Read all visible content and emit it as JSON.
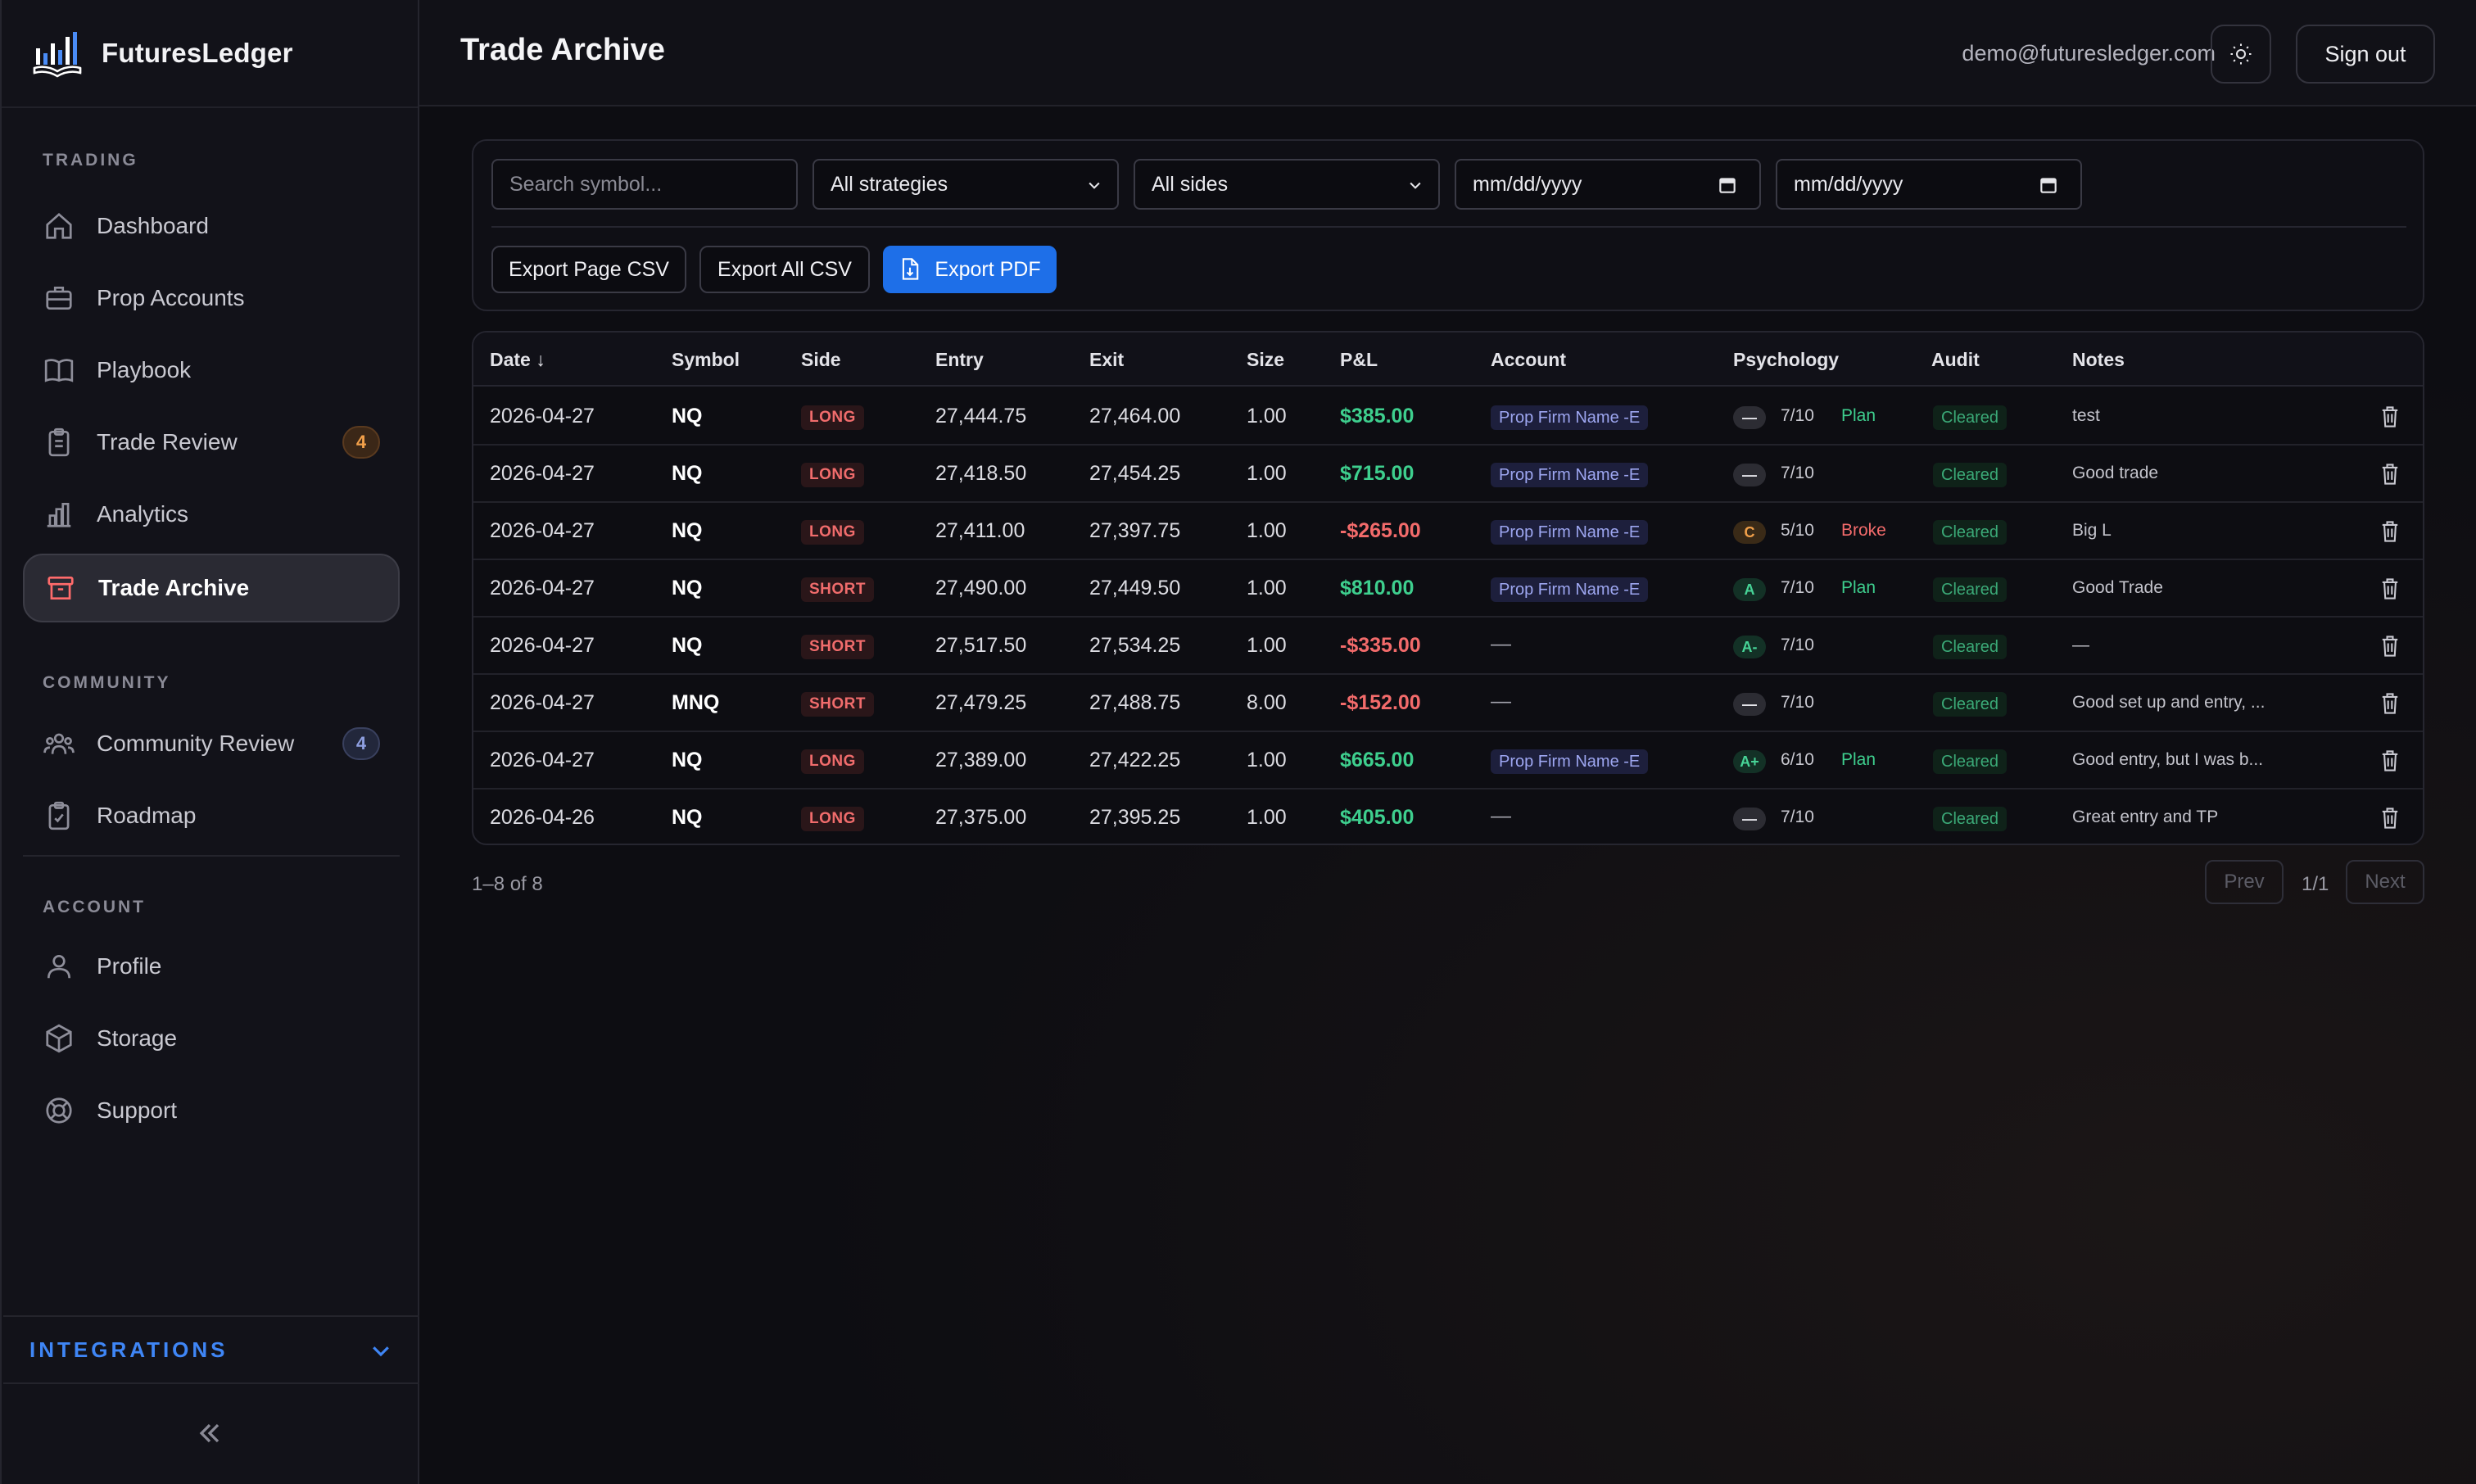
{
  "brand": {
    "name": "FuturesLedger"
  },
  "sidebar": {
    "sections": {
      "trading": "TRADING",
      "community": "COMMUNITY",
      "account": "ACCOUNT"
    },
    "items": [
      {
        "label": "Dashboard",
        "icon": "home-icon"
      },
      {
        "label": "Prop Accounts",
        "icon": "briefcase-icon"
      },
      {
        "label": "Playbook",
        "icon": "book-icon"
      },
      {
        "label": "Trade Review",
        "icon": "clipboard-icon",
        "badge": "4"
      },
      {
        "label": "Analytics",
        "icon": "bar-chart-icon"
      },
      {
        "label": "Trade Archive",
        "icon": "archive-icon",
        "active": true
      },
      {
        "label": "Community Review",
        "icon": "users-icon",
        "badge": "4"
      },
      {
        "label": "Roadmap",
        "icon": "clipboard-check-icon"
      },
      {
        "label": "Profile",
        "icon": "user-icon"
      },
      {
        "label": "Storage",
        "icon": "box-icon"
      },
      {
        "label": "Support",
        "icon": "lifebuoy-icon"
      }
    ],
    "integrations": "INTEGRATIONS"
  },
  "header": {
    "title": "Trade Archive",
    "email": "demo@futuresledger.com",
    "signout": "Sign out"
  },
  "filters": {
    "search_placeholder": "Search symbol...",
    "strategy": "All strategies",
    "side": "All sides",
    "date_from": "mm/dd/yyyy",
    "date_to": "mm/dd/yyyy",
    "export_page": "Export Page CSV",
    "export_all": "Export All CSV",
    "export_pdf": "Export PDF"
  },
  "table": {
    "headers": [
      "Date",
      "Symbol",
      "Side",
      "Entry",
      "Exit",
      "Size",
      "P&L",
      "Account",
      "Psychology",
      "Audit",
      "Notes"
    ],
    "sort_indicator": "↓",
    "rows": [
      {
        "date": "2026-04-27",
        "symbol": "NQ",
        "side": "LONG",
        "entry": "27,444.75",
        "exit": "27,464.00",
        "size": "1.00",
        "pnl": "$385.00",
        "pnl_sign": "pos",
        "account": "Prop Firm Name -E",
        "grade": "—",
        "score": "7/10",
        "tag": "Plan",
        "audit": "Cleared",
        "notes": "test"
      },
      {
        "date": "2026-04-27",
        "symbol": "NQ",
        "side": "LONG",
        "entry": "27,418.50",
        "exit": "27,454.25",
        "size": "1.00",
        "pnl": "$715.00",
        "pnl_sign": "pos",
        "account": "Prop Firm Name -E",
        "grade": "—",
        "score": "7/10",
        "tag": "",
        "audit": "Cleared",
        "notes": "Good trade"
      },
      {
        "date": "2026-04-27",
        "symbol": "NQ",
        "side": "LONG",
        "entry": "27,411.00",
        "exit": "27,397.75",
        "size": "1.00",
        "pnl": "-$265.00",
        "pnl_sign": "neg",
        "account": "Prop Firm Name -E",
        "grade": "C",
        "score": "5/10",
        "tag": "Broke",
        "audit": "Cleared",
        "notes": "Big L"
      },
      {
        "date": "2026-04-27",
        "symbol": "NQ",
        "side": "SHORT",
        "entry": "27,490.00",
        "exit": "27,449.50",
        "size": "1.00",
        "pnl": "$810.00",
        "pnl_sign": "pos",
        "account": "Prop Firm Name -E",
        "grade": "A",
        "score": "7/10",
        "tag": "Plan",
        "audit": "Cleared",
        "notes": "Good Trade"
      },
      {
        "date": "2026-04-27",
        "symbol": "NQ",
        "side": "SHORT",
        "entry": "27,517.50",
        "exit": "27,534.25",
        "size": "1.00",
        "pnl": "-$335.00",
        "pnl_sign": "neg",
        "account": "—",
        "grade": "A-",
        "score": "7/10",
        "tag": "",
        "audit": "Cleared",
        "notes": "—"
      },
      {
        "date": "2026-04-27",
        "symbol": "MNQ",
        "side": "SHORT",
        "entry": "27,479.25",
        "exit": "27,488.75",
        "size": "8.00",
        "pnl": "-$152.00",
        "pnl_sign": "neg",
        "account": "—",
        "grade": "—",
        "score": "7/10",
        "tag": "",
        "audit": "Cleared",
        "notes": "Good set up and entry, ..."
      },
      {
        "date": "2026-04-27",
        "symbol": "NQ",
        "side": "LONG",
        "entry": "27,389.00",
        "exit": "27,422.25",
        "size": "1.00",
        "pnl": "$665.00",
        "pnl_sign": "pos",
        "account": "Prop Firm Name -E",
        "grade": "A+",
        "score": "6/10",
        "tag": "Plan",
        "audit": "Cleared",
        "notes": "Good entry, but I was b..."
      },
      {
        "date": "2026-04-26",
        "symbol": "NQ",
        "side": "LONG",
        "entry": "27,375.00",
        "exit": "27,395.25",
        "size": "1.00",
        "pnl": "$405.00",
        "pnl_sign": "pos",
        "account": "—",
        "grade": "—",
        "score": "7/10",
        "tag": "",
        "audit": "Cleared",
        "notes": "Great entry and TP"
      }
    ]
  },
  "pagination": {
    "count": "1–8 of 8",
    "prev": "Prev",
    "page": "1/1",
    "next": "Next"
  },
  "colors": {
    "accent": "#1e6fe8",
    "positive": "#3ecf8e",
    "negative": "#f36b6b",
    "active_icon": "#ff6b6b"
  }
}
